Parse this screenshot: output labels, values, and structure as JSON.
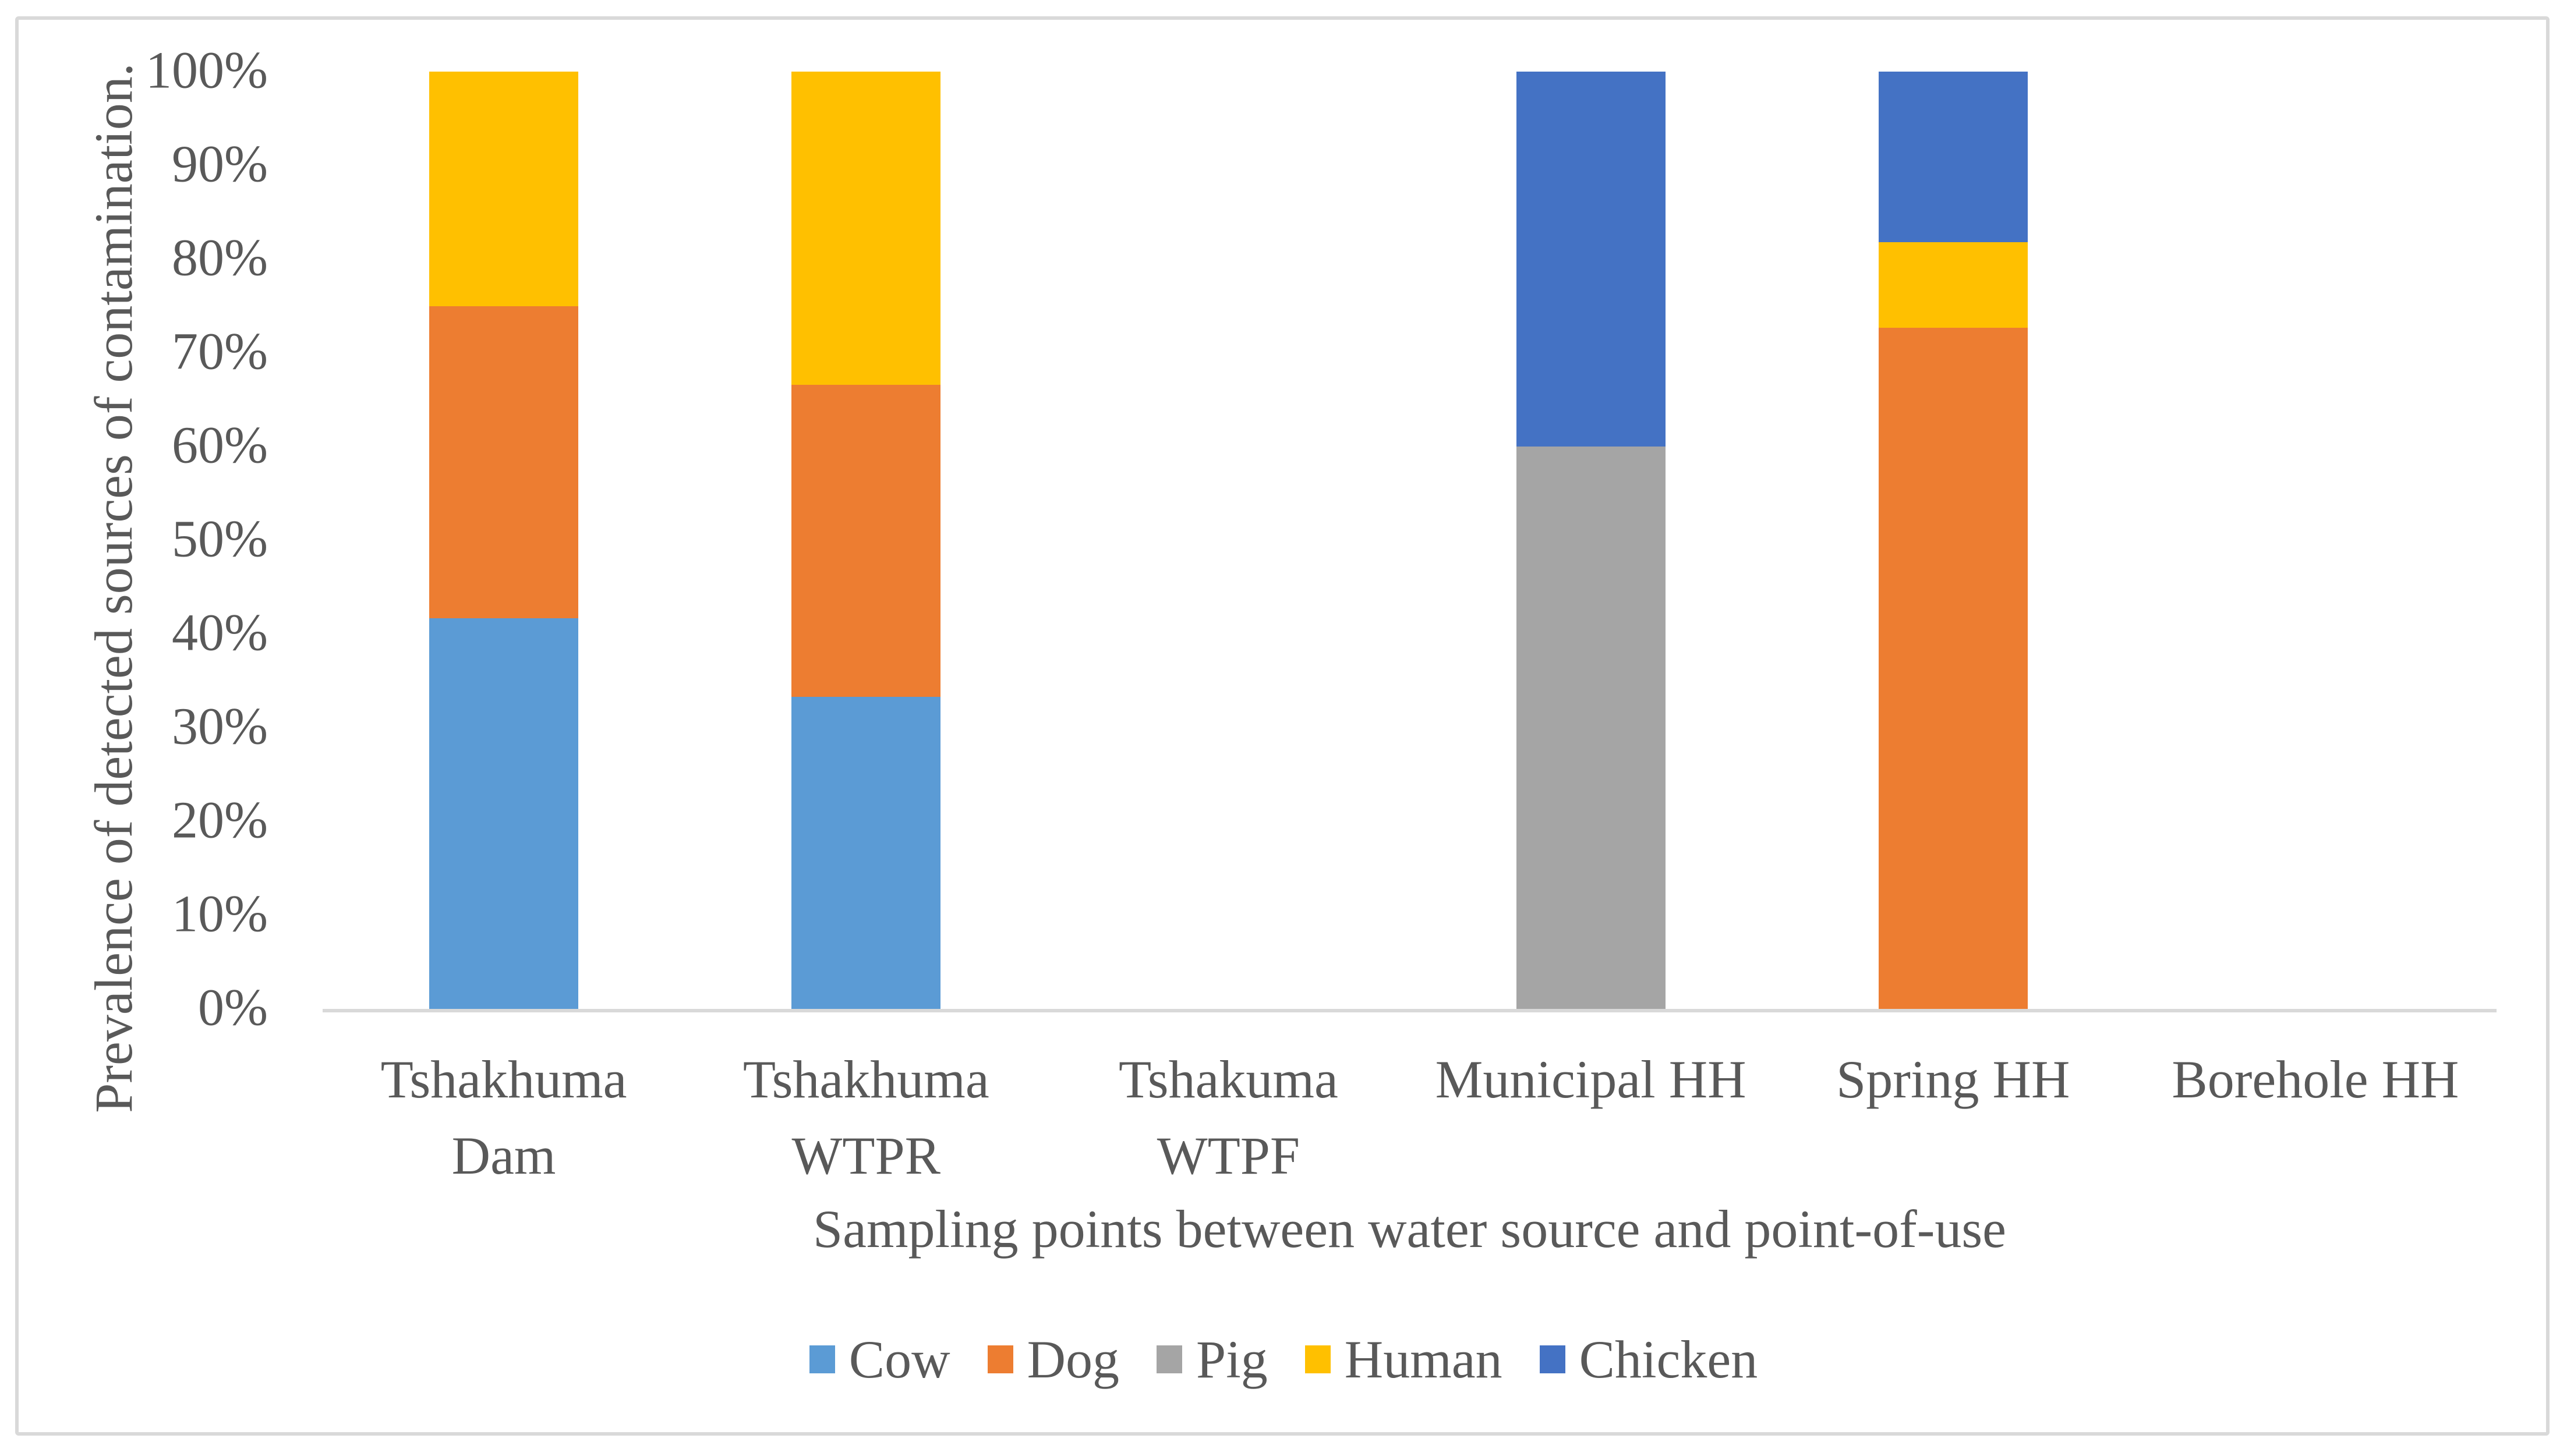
{
  "chart_data": {
    "type": "bar",
    "stacked": true,
    "title": "",
    "xlabel": "Sampling points between water source and point-of-use",
    "ylabel": "Prevalence of detected sources of contamination.",
    "categories": [
      "Tshakhuma Dam",
      "Tshakhuma WTPR",
      "Tshakuma WTPF",
      "Municipal HH",
      "Spring HH",
      "Borehole HH"
    ],
    "category_label_lines": [
      [
        "Tshakhuma Dam"
      ],
      [
        "Tshakhuma",
        "WTPR"
      ],
      [
        "Tshakuma WTPF"
      ],
      [
        "Municipal HH"
      ],
      [
        "Spring HH"
      ],
      [
        "Borehole HH"
      ]
    ],
    "series": [
      {
        "name": "Cow",
        "color": "#5B9BD5",
        "values": [
          41.7,
          33.3,
          0,
          0,
          0,
          0
        ]
      },
      {
        "name": "Dog",
        "color": "#ED7D31",
        "values": [
          33.3,
          33.3,
          0,
          0,
          72.7,
          0
        ]
      },
      {
        "name": "Pig",
        "color": "#A5A5A5",
        "values": [
          0,
          0,
          0,
          60,
          0,
          0
        ]
      },
      {
        "name": "Human",
        "color": "#FFC000",
        "values": [
          25.0,
          33.4,
          0,
          0,
          9.1,
          0
        ]
      },
      {
        "name": "Chicken",
        "color": "#4472C4",
        "values": [
          0,
          0,
          0,
          40,
          18.2,
          0
        ]
      }
    ],
    "y_ticks": [
      "100%",
      "90%",
      "80%",
      "70%",
      "60%",
      "50%",
      "40%",
      "30%",
      "20%",
      "10%",
      "0%"
    ],
    "ylim": [
      0,
      100
    ],
    "grid": false,
    "legend_position": "bottom",
    "legend": [
      "Cow",
      "Dog",
      "Pig",
      "Human",
      "Chicken"
    ]
  },
  "colors": {
    "text": "#595959",
    "axis_line": "#d9d9d9",
    "figure_border": "#d9d9d9",
    "background": "#ffffff"
  }
}
